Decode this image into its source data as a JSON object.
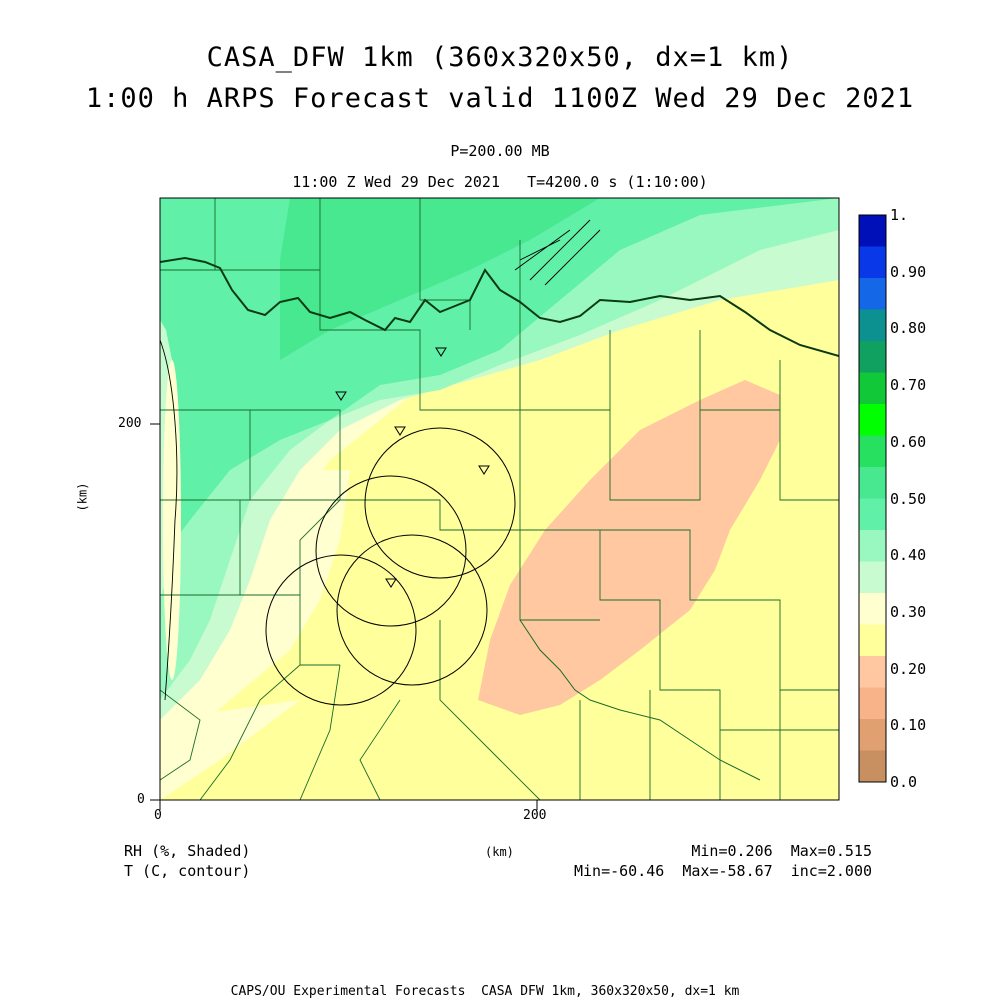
{
  "header": {
    "title_line1": "CASA_DFW 1km (360x320x50, dx=1 km)",
    "title_line2": "1:00 h ARPS Forecast valid 1100Z Wed 29 Dec 2021",
    "level": "P=200.00 MB",
    "time_line": "11:00 Z Wed 29 Dec 2021   T=4200.0 s (1:10:00)"
  },
  "axes": {
    "x_ticks": [
      "0",
      "200"
    ],
    "y_ticks": [
      "0",
      "200"
    ],
    "x_label": "(km)",
    "y_label": "(km)"
  },
  "colorbar": {
    "labels": [
      "1.",
      "0.90",
      "0.80",
      "0.70",
      "0.60",
      "0.50",
      "0.40",
      "0.30",
      "0.20",
      "0.10",
      "0.0"
    ],
    "colors": [
      "#0010b8",
      "#0838e8",
      "#1468e8",
      "#0c9090",
      "#10a060",
      "#10c838",
      "#00ff00",
      "#28e060",
      "#48e890",
      "#60f0a8",
      "#98f8c0",
      "#c8fcd0",
      "#ffffd0",
      "#ffff9c",
      "#ffc8a0",
      "#f8b488",
      "#e0a070",
      "#c89060"
    ]
  },
  "legend": {
    "rh": "RH (%, Shaded)",
    "rh_stats": "Min=0.206  Max=0.515",
    "t": "T (C, contour)",
    "t_stats": "Min=-60.46  Max=-58.67  inc=2.000"
  },
  "footer": "CAPS/OU Experimental Forecasts  CASA DFW 1km, 360x320x50, dx=1 km"
}
